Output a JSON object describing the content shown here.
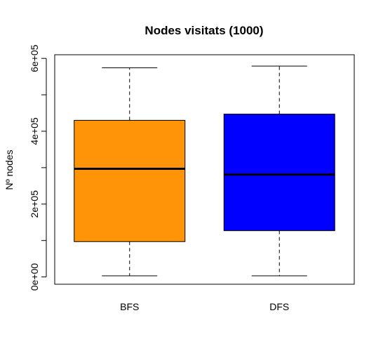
{
  "chart_data": {
    "type": "box",
    "title": "Nodes visitats (1000)",
    "xlabel": "",
    "ylabel": "Nº nodes",
    "ylim": [
      -20000,
      610000
    ],
    "yticks": [
      0,
      100000,
      200000,
      300000,
      400000,
      500000,
      600000
    ],
    "ytick_labels": [
      "0e+00",
      "",
      "2e+05",
      "",
      "4e+05",
      "",
      "6e+05"
    ],
    "categories": [
      "BFS",
      "DFS"
    ],
    "boxes": [
      {
        "category": "BFS",
        "min": 3000,
        "q1": 97000,
        "median": 297000,
        "q3": 430000,
        "max": 574000,
        "color": "#ff9408"
      },
      {
        "category": "DFS",
        "min": 3000,
        "q1": 127000,
        "median": 281000,
        "q3": 447000,
        "max": 579000,
        "color": "#0000ff"
      }
    ],
    "grid": false,
    "legend": "none"
  }
}
